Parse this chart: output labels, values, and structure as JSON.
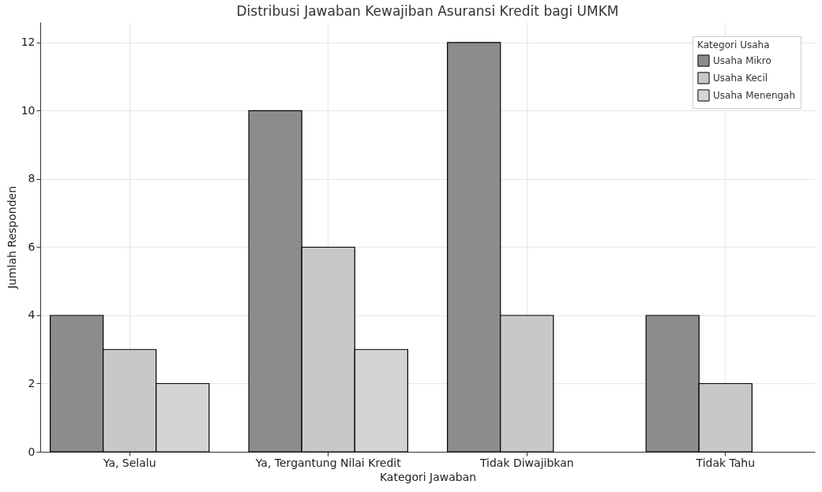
{
  "chart_data": {
    "type": "bar",
    "title": "Distribusi Jawaban Kewajiban Asuransi Kredit bagi UMKM",
    "xlabel": "Kategori Jawaban",
    "ylabel": "Jumlah Responden",
    "legend_title": "Kategori Usaha",
    "categories": [
      "Ya, Selalu",
      "Ya, Tergantung Nilai Kredit",
      "Tidak Diwajibkan",
      "Tidak Tahu"
    ],
    "series": [
      {
        "name": "Usaha Mikro",
        "color": "#8c8c8c",
        "values": [
          4,
          10,
          12,
          4
        ]
      },
      {
        "name": "Usaha Kecil",
        "color": "#c8c8c8",
        "values": [
          3,
          6,
          4,
          2
        ]
      },
      {
        "name": "Usaha Menengah",
        "color": "#d4d4d4",
        "values": [
          2,
          3,
          null,
          null
        ]
      }
    ],
    "ylim": [
      0,
      12.6
    ],
    "yticks": [
      0,
      2,
      4,
      6,
      8,
      10,
      12
    ],
    "grid": true,
    "legend": "top right"
  }
}
